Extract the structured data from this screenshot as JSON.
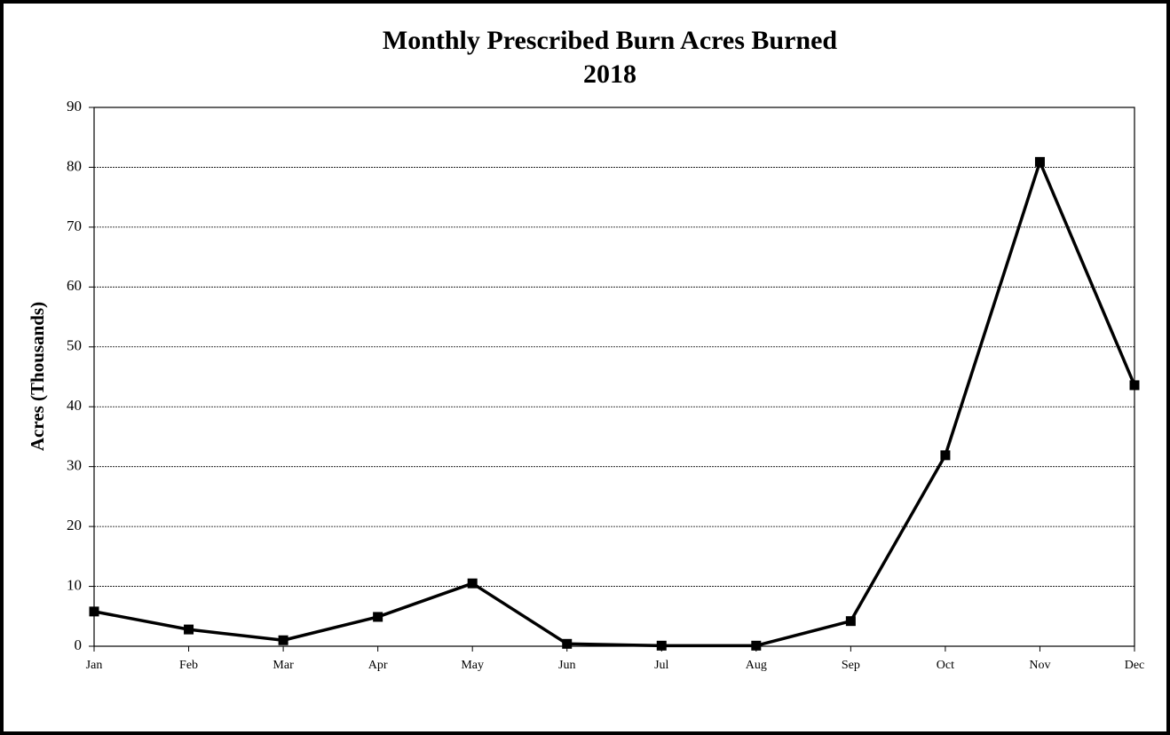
{
  "chart_data": {
    "type": "line",
    "title": "Monthly Prescribed Burn Acres Burned",
    "subtitle": "2018",
    "y_label": "Acres (Thousands)",
    "categories": [
      "Jan",
      "Feb",
      "Mar",
      "Apr",
      "May",
      "Jun",
      "Jul",
      "Aug",
      "Sep",
      "Oct",
      "Nov",
      "Dec"
    ],
    "values": [
      5.8,
      2.8,
      1.0,
      4.9,
      10.5,
      0.4,
      0.1,
      0.1,
      4.2,
      31.9,
      80.9,
      43.6
    ],
    "color": "#000000",
    "ylim": [
      0,
      90
    ],
    "yticks": [
      0,
      10,
      20,
      30,
      40,
      50,
      60,
      70,
      80,
      90
    ],
    "grid": true
  }
}
